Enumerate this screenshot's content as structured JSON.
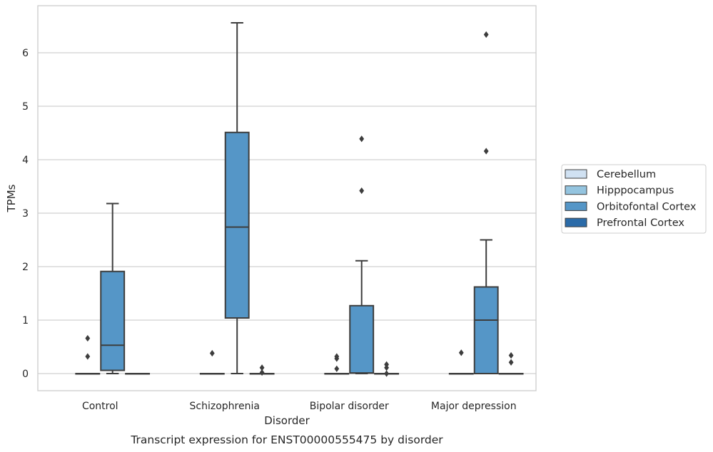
{
  "chart_data": {
    "type": "box",
    "title": "",
    "caption": "Transcript expression for ENST00000555475 by disorder",
    "xlabel": "Disorder",
    "ylabel": "TPMs",
    "ylim": [
      -0.32,
      6.88
    ],
    "yticks": [
      0,
      1,
      2,
      3,
      4,
      5,
      6
    ],
    "grid": "horizontal",
    "legend_position": "right",
    "categories": [
      "Control",
      "Schizophrenia",
      "Bipolar disorder",
      "Major depression"
    ],
    "series": [
      {
        "name": "Cerebellum",
        "color": "#d0e1f2",
        "boxes": [
          null,
          null,
          null,
          null
        ]
      },
      {
        "name": "Hipppocampus",
        "color": "#94c4df",
        "boxes": [
          {
            "q1": 0,
            "median": 0,
            "q3": 0,
            "whisker_low": 0,
            "whisker_high": 0,
            "outliers": [
              0.32,
              0.66
            ]
          },
          {
            "q1": 0,
            "median": 0,
            "q3": 0,
            "whisker_low": 0,
            "whisker_high": 0,
            "outliers": [
              0.38
            ]
          },
          {
            "q1": 0,
            "median": 0,
            "q3": 0,
            "whisker_low": 0,
            "whisker_high": 0,
            "outliers": [
              0.09,
              0.28,
              0.32
            ]
          },
          {
            "q1": 0,
            "median": 0,
            "q3": 0,
            "whisker_low": 0,
            "whisker_high": 0,
            "outliers": [
              0.39
            ]
          }
        ]
      },
      {
        "name": "Orbitofontal Cortex",
        "color": "#5596c7",
        "boxes": [
          {
            "q1": 0.06,
            "median": 0.53,
            "q3": 1.91,
            "whisker_low": 0,
            "whisker_high": 3.18,
            "outliers": []
          },
          {
            "q1": 1.04,
            "median": 2.74,
            "q3": 4.51,
            "whisker_low": 0,
            "whisker_high": 6.56,
            "outliers": []
          },
          {
            "q1": 0.01,
            "median": 0.01,
            "q3": 1.27,
            "whisker_low": 0,
            "whisker_high": 2.11,
            "outliers": [
              3.42,
              4.39
            ]
          },
          {
            "q1": 0,
            "median": 1.0,
            "q3": 1.62,
            "whisker_low": 0,
            "whisker_high": 2.5,
            "outliers": [
              4.16,
              6.34
            ]
          }
        ]
      },
      {
        "name": "Prefrontal Cortex",
        "color": "#2b6ba8",
        "boxes": [
          {
            "q1": 0,
            "median": 0,
            "q3": 0,
            "whisker_low": 0,
            "whisker_high": 0,
            "outliers": []
          },
          {
            "q1": 0,
            "median": 0,
            "q3": 0,
            "whisker_low": 0,
            "whisker_high": 0,
            "outliers": [
              0.02,
              0.11
            ]
          },
          {
            "q1": 0,
            "median": 0,
            "q3": 0,
            "whisker_low": 0,
            "whisker_high": 0,
            "outliers": [
              0.0,
              0.11,
              0.17
            ]
          },
          {
            "q1": 0,
            "median": 0,
            "q3": 0,
            "whisker_low": 0,
            "whisker_high": 0,
            "outliers": [
              0.21,
              0.34
            ]
          }
        ]
      }
    ]
  }
}
